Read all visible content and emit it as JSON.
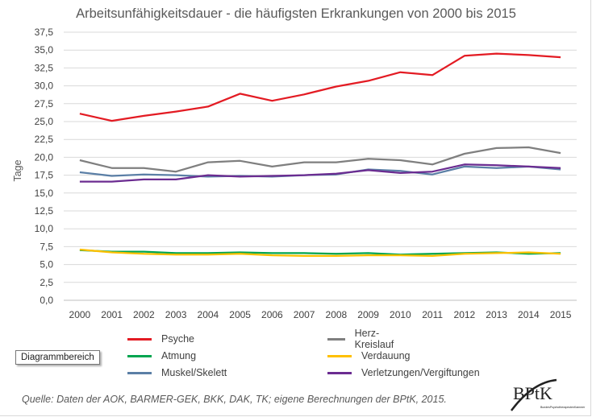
{
  "chart_data": {
    "type": "line",
    "title": "Arbeitsunfähigkeitsdauer - die häufigsten Erkrankungen von 2000 bis 2015",
    "xlabel": "",
    "ylabel": "Tage",
    "ylim": [
      0,
      37.5
    ],
    "yticks": [
      "0,0",
      "2,5",
      "5,0",
      "7,5",
      "10,0",
      "12,5",
      "15,0",
      "17,5",
      "20,0",
      "22,5",
      "25,0",
      "27,5",
      "30,0",
      "32,5",
      "35,0",
      "37,5"
    ],
    "x": [
      "2000",
      "2001",
      "2002",
      "2003",
      "2004",
      "2005",
      "2006",
      "2007",
      "2008",
      "2009",
      "2010",
      "2011",
      "2012",
      "2013",
      "2014",
      "2015"
    ],
    "grid": true,
    "legend_position": "bottom",
    "series": [
      {
        "name": "Psyche",
        "color": "#e31b23",
        "values": [
          26.1,
          25.1,
          25.8,
          26.4,
          27.1,
          28.9,
          27.9,
          28.8,
          29.9,
          30.7,
          31.9,
          31.5,
          34.2,
          34.5,
          34.3,
          34.0
        ]
      },
      {
        "name": "Herz-Kreislauf",
        "color": "#7f7f7f",
        "values": [
          19.6,
          18.5,
          18.5,
          18.0,
          19.3,
          19.5,
          18.7,
          19.3,
          19.3,
          19.8,
          19.6,
          19.0,
          20.5,
          21.3,
          21.4,
          20.6
        ]
      },
      {
        "name": "Atmung",
        "color": "#00a54f",
        "values": [
          7.0,
          6.8,
          6.8,
          6.6,
          6.6,
          6.7,
          6.6,
          6.6,
          6.5,
          6.6,
          6.4,
          6.5,
          6.6,
          6.7,
          6.5,
          6.6
        ]
      },
      {
        "name": "Verdauung",
        "color": "#ffc000",
        "values": [
          7.1,
          6.7,
          6.5,
          6.4,
          6.4,
          6.5,
          6.3,
          6.2,
          6.2,
          6.3,
          6.3,
          6.2,
          6.5,
          6.6,
          6.7,
          6.5
        ]
      },
      {
        "name": "Muskel/Skelett",
        "color": "#5b7fa6",
        "values": [
          17.9,
          17.4,
          17.6,
          17.5,
          17.3,
          17.4,
          17.3,
          17.5,
          17.6,
          18.3,
          18.1,
          17.6,
          18.7,
          18.5,
          18.7,
          18.3
        ]
      },
      {
        "name": "Verletzungen/Vergiftungen",
        "color": "#6b2c91",
        "values": [
          16.6,
          16.6,
          16.9,
          16.9,
          17.5,
          17.3,
          17.4,
          17.5,
          17.7,
          18.2,
          17.8,
          18.0,
          19.0,
          18.9,
          18.7,
          18.5
        ]
      }
    ]
  },
  "tooltip": "Diagrammbereich",
  "source": "Quelle: Daten der AOK, BARMER-GEK, BKK, DAK, TK; eigene Berechnungen der BPtK, 2015.",
  "logo": {
    "name": "BPtK",
    "subtitle": "BundesPsychotherapeutenKammer"
  }
}
